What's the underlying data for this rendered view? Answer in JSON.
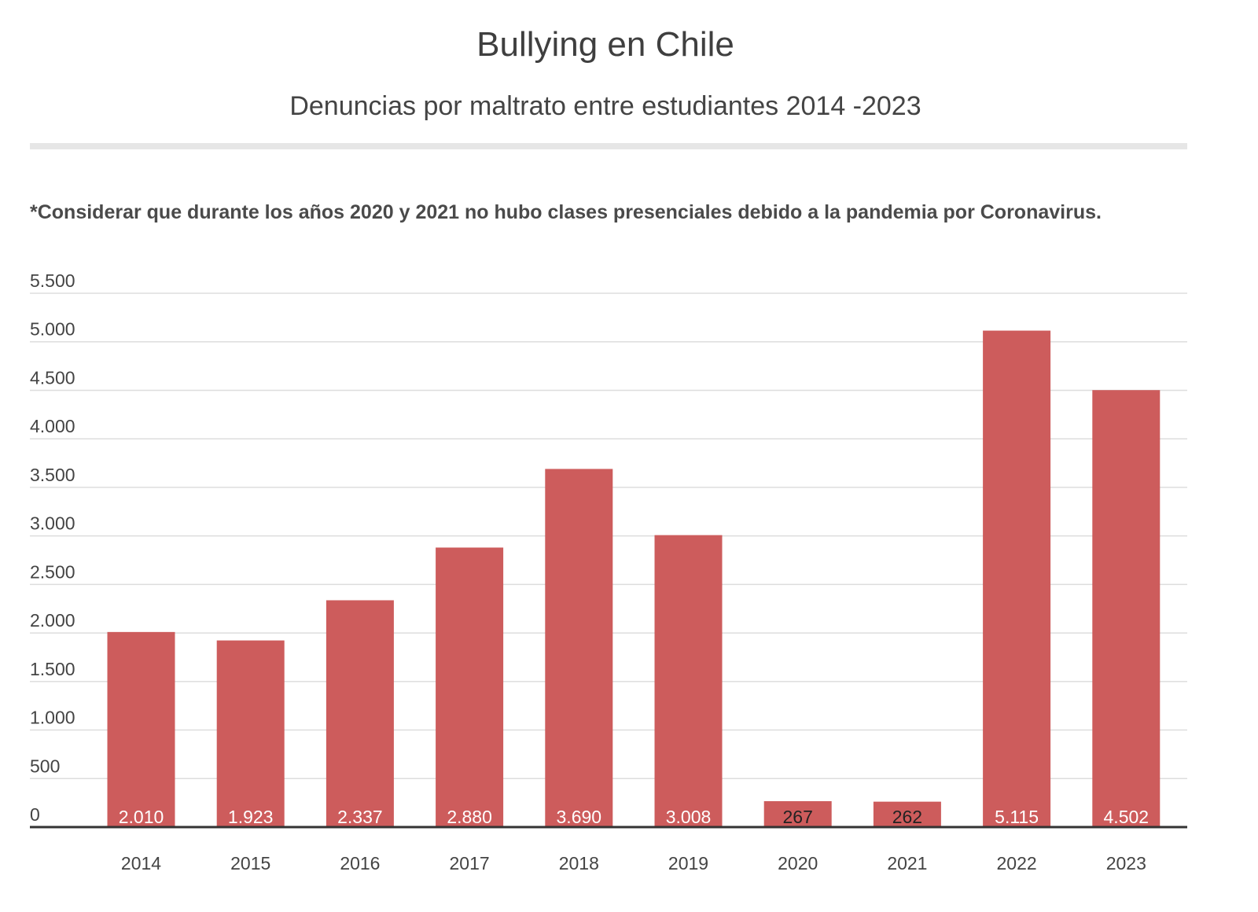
{
  "header": {
    "title": "Bullying en Chile",
    "subtitle": "Denuncias por maltrato entre estudiantes 2014 -2023",
    "note": "*Considerar que durante los años 2020 y 2021 no hubo clases presenciales debido a la pandemia por Coronavirus."
  },
  "colors": {
    "bar": "#cd5c5c",
    "grid": "#dddddd",
    "axis": "#333333",
    "label_on_bar": "#ffffff",
    "label_small_bar": "#222222"
  },
  "chart_data": {
    "type": "bar",
    "title": "Bullying en Chile",
    "subtitle": "Denuncias por maltrato entre estudiantes 2014 -2023",
    "categories": [
      "2014",
      "2015",
      "2016",
      "2017",
      "2018",
      "2019",
      "2020",
      "2021",
      "2022",
      "2023"
    ],
    "values": [
      2010,
      1923,
      2337,
      2880,
      3690,
      3008,
      267,
      262,
      5115,
      4502
    ],
    "value_labels": [
      "2.010",
      "1.923",
      "2.337",
      "2.880",
      "3.690",
      "3.008",
      "267",
      "262",
      "5.115",
      "4.502"
    ],
    "ylim": [
      0,
      5500
    ],
    "yticks": [
      0,
      500,
      1000,
      1500,
      2000,
      2500,
      3000,
      3500,
      4000,
      4500,
      5000,
      5500
    ],
    "ytick_labels": [
      "0",
      "500",
      "1.000",
      "1.500",
      "2.000",
      "2.500",
      "3.000",
      "3.500",
      "4.000",
      "4.500",
      "5.000",
      "5.500"
    ],
    "xlabel": "",
    "ylabel": "",
    "grid": true,
    "legend": "none"
  }
}
